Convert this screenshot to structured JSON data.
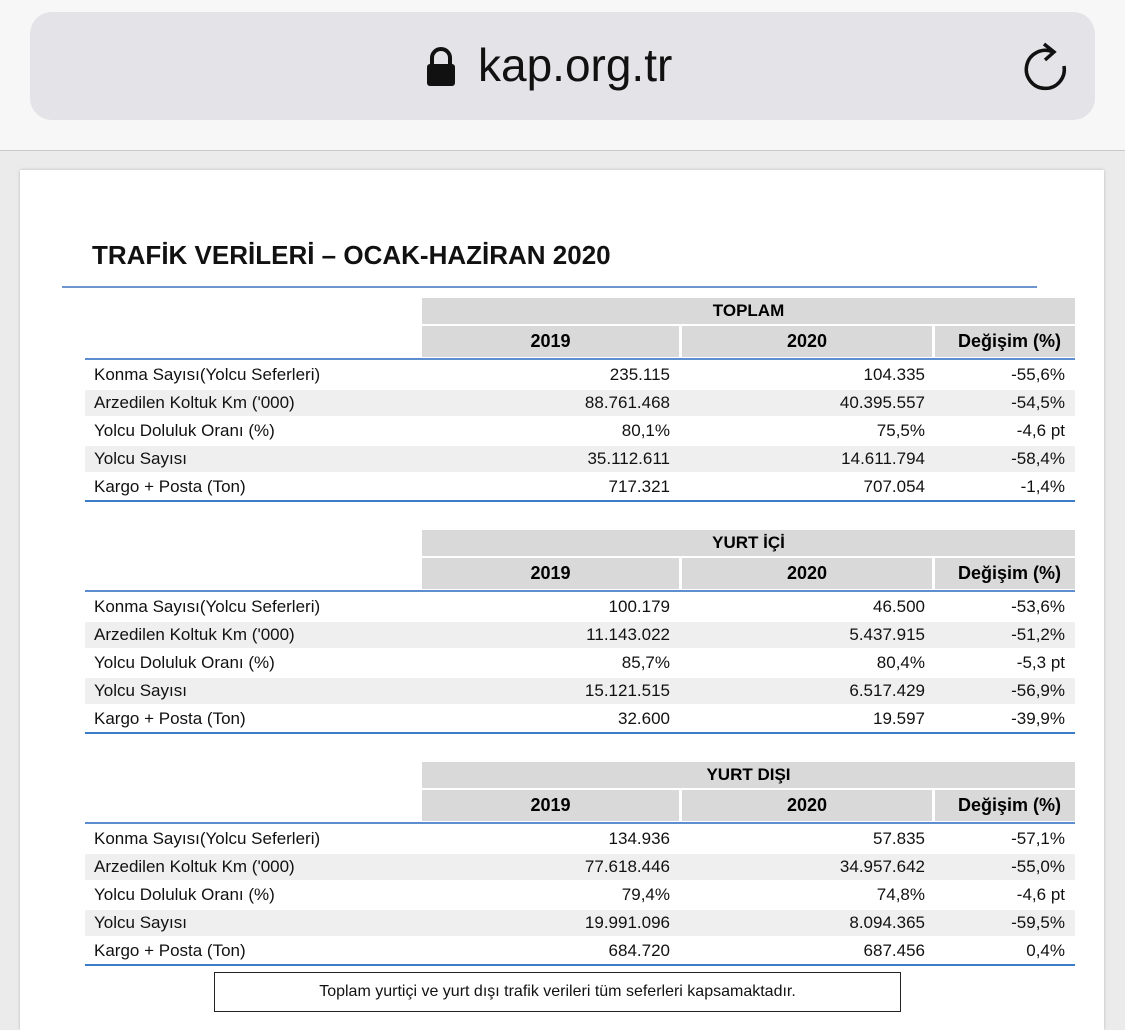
{
  "browser": {
    "url": "kap.org.tr"
  },
  "title": "TRAFİK VERİLERİ – OCAK-HAZİRAN 2020",
  "tables": [
    {
      "group": "TOPLAM",
      "columns": [
        "2019",
        "2020",
        "Değişim (%)"
      ],
      "rows": [
        [
          "Konma Sayısı(Yolcu Seferleri)",
          "235.115",
          "104.335",
          "-55,6%"
        ],
        [
          "Arzedilen Koltuk Km ('000)",
          "88.761.468",
          "40.395.557",
          "-54,5%"
        ],
        [
          "Yolcu Doluluk Oranı (%)",
          "80,1%",
          "75,5%",
          "-4,6 pt"
        ],
        [
          "Yolcu Sayısı",
          "35.112.611",
          "14.611.794",
          "-58,4%"
        ],
        [
          "Kargo + Posta (Ton)",
          "717.321",
          "707.054",
          "-1,4%"
        ]
      ]
    },
    {
      "group": "YURT İÇİ",
      "columns": [
        "2019",
        "2020",
        "Değişim (%)"
      ],
      "rows": [
        [
          "Konma Sayısı(Yolcu Seferleri)",
          "100.179",
          "46.500",
          "-53,6%"
        ],
        [
          "Arzedilen Koltuk Km ('000)",
          "11.143.022",
          "5.437.915",
          "-51,2%"
        ],
        [
          "Yolcu Doluluk Oranı (%)",
          "85,7%",
          "80,4%",
          "-5,3 pt"
        ],
        [
          "Yolcu Sayısı",
          "15.121.515",
          "6.517.429",
          "-56,9%"
        ],
        [
          "Kargo + Posta (Ton)",
          "32.600",
          "19.597",
          "-39,9%"
        ]
      ]
    },
    {
      "group": "YURT DIŞI",
      "columns": [
        "2019",
        "2020",
        "Değişim (%)"
      ],
      "rows": [
        [
          "Konma Sayısı(Yolcu Seferleri)",
          "134.936",
          "57.835",
          "-57,1%"
        ],
        [
          "Arzedilen Koltuk Km ('000)",
          "77.618.446",
          "34.957.642",
          "-55,0%"
        ],
        [
          "Yolcu Doluluk Oranı (%)",
          "79,4%",
          "74,8%",
          "-4,6 pt"
        ],
        [
          "Yolcu Sayısı",
          "19.991.096",
          "8.094.365",
          "-59,5%"
        ],
        [
          "Kargo + Posta (Ton)",
          "684.720",
          "687.456",
          "0,4%"
        ]
      ]
    }
  ],
  "footnote": "Toplam yurtiçi ve yurt dışı trafik verileri tüm seferleri kapsamaktadır."
}
